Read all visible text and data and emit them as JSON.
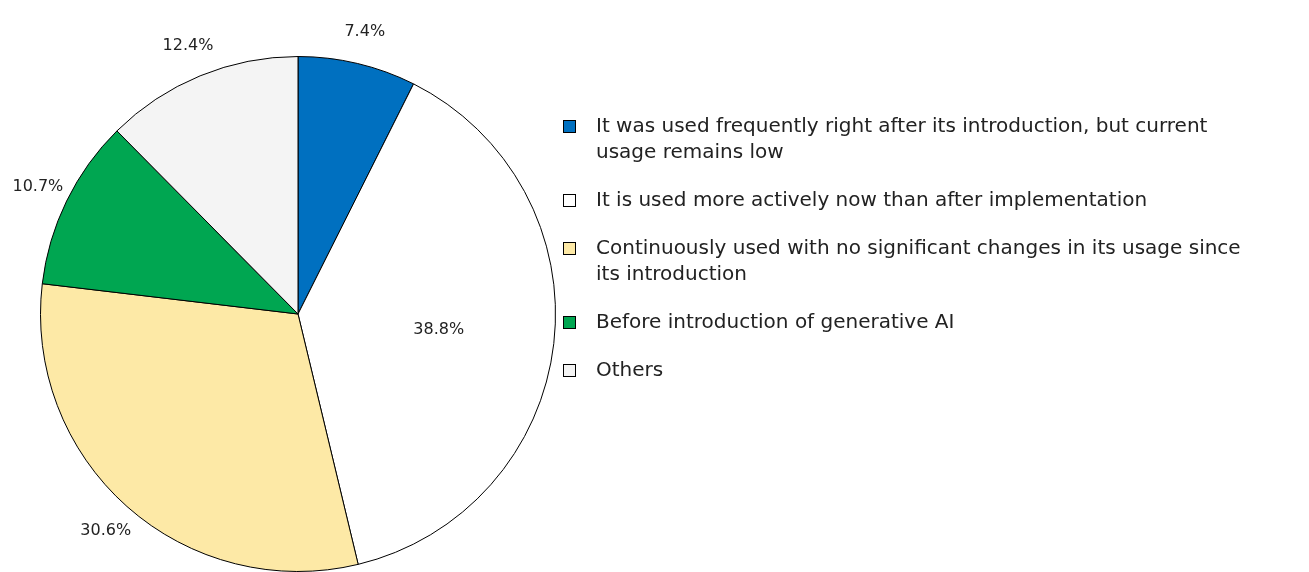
{
  "chart_data": {
    "type": "pie",
    "categories": [
      "It was used frequently right after its introduction, but current usage remains low",
      "It is used more actively now than after implementation",
      "Continuously used with no significant changes in its usage since its introduction",
      "Before introduction of generative AI",
      "Others"
    ],
    "values": [
      7.4,
      38.8,
      30.6,
      10.7,
      12.4
    ],
    "colors": [
      "#0070c0",
      "#ffffff",
      "#fde9a6",
      "#00a651",
      "#f4f4f4"
    ],
    "value_labels": [
      "7.4%",
      "38.8%",
      "30.6%",
      "10.7%",
      "12.4%"
    ],
    "legend": "right"
  }
}
